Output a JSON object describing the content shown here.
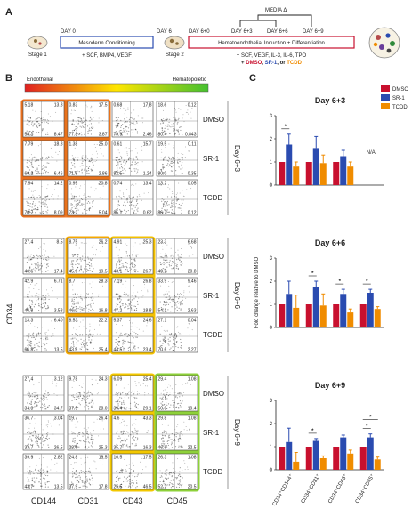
{
  "panels": {
    "a": "A",
    "b": "B",
    "c": "C"
  },
  "timeline": {
    "day0": "DAY 0",
    "day6": "DAY 6",
    "day6_0": "DAY 6+0",
    "day6_3": "DAY 6+3",
    "day6_6": "DAY 6+6",
    "day6_9": "DAY 6+9",
    "media": "MEDIA Δ",
    "stage1": "Stage 1",
    "stage2": "Stage 2",
    "mesoderm": "Mesoderm Conditioning",
    "mesoderm_factors": "+ SCF, BMP4, VEGF",
    "hemato": "Hematoendothelial Induction + Differentiation",
    "hemato_factors": "+ SCF, VEGF, IL-3, IL-6, TPO",
    "plus": "+",
    "dmso": "DMSO",
    "sep1": ",",
    "sr1": "SR-1",
    "sep2": ", or",
    "tcdd": "TCDD"
  },
  "gradient": {
    "left": "Endothelial",
    "right": "Hematopoietic"
  },
  "flow": {
    "ylabel": "CD34",
    "columns": [
      "CD144",
      "CD31",
      "CD43",
      "CD45"
    ],
    "treatments": [
      "DMSO",
      "SR-1",
      "TCDD"
    ],
    "days": [
      "Day 6+3",
      "Day 6+6",
      "Day 6+9"
    ],
    "quadrants": [
      [
        [
          "5.18",
          "13.8",
          "58.1",
          "8.47"
        ],
        [
          "0.83",
          "17.5",
          "77.8",
          "3.87"
        ],
        [
          "0.68",
          "17.8",
          "79.9",
          "2.46"
        ],
        [
          "18.6",
          "0.12",
          "80.4",
          "0.843"
        ]
      ],
      [
        [
          "7.79",
          "18.8",
          "60.2",
          "6.46"
        ],
        [
          "1.38",
          "25.0",
          "71.9",
          "2.86"
        ],
        [
          "0.61",
          "15.7",
          "82.5",
          "1.24"
        ],
        [
          "19.5",
          "0.11",
          "80.0",
          "0.35"
        ]
      ],
      [
        [
          "7.94",
          "14.2",
          "70.7",
          "8.09"
        ],
        [
          "0.95",
          "20.8",
          "73.2",
          "5.04"
        ],
        [
          "0.74",
          "13.4",
          "85.1",
          "0.62"
        ],
        [
          "13.2",
          "0.05",
          "86.7",
          "0.12"
        ]
      ],
      [
        [
          "27.4",
          "8.5",
          "46.6",
          "17.4"
        ],
        [
          "8.75",
          "26.2",
          "45.6",
          "19.5"
        ],
        [
          "4.91",
          "25.3",
          "43.1",
          "26.7"
        ],
        [
          "23.3",
          "6.68",
          "49.2",
          "20.8"
        ]
      ],
      [
        [
          "42.9",
          "6.71",
          "46.8",
          "3.58"
        ],
        [
          "8.7",
          "28.3",
          "46.2",
          "16.8"
        ],
        [
          "7.19",
          "26.8",
          "47.2",
          "18.8"
        ],
        [
          "33.9",
          "9.46",
          "54.1",
          "2.63"
        ]
      ],
      [
        [
          "13.3",
          "6.40",
          "66.8",
          "13.5"
        ],
        [
          "8.53",
          "22.2",
          "43.9",
          "25.4"
        ],
        [
          "5.37",
          "24.6",
          "44.5",
          "23.4"
        ],
        [
          "27.1",
          "0.04",
          "70.6",
          "2.27"
        ]
      ],
      [
        [
          "27.4",
          "3.12",
          "34.8",
          "34.7"
        ],
        [
          "9.78",
          "24.3",
          "37.9",
          "28.0"
        ],
        [
          "6.09",
          "25.4",
          "39.4",
          "29.1"
        ],
        [
          "29.4",
          "1.08",
          "50.0",
          "19.4"
        ]
      ],
      [
        [
          "36.7",
          "3.04",
          "33.7",
          "26.5"
        ],
        [
          "19.7",
          "26.4",
          "28.6",
          "25.3"
        ],
        [
          "4.6",
          "43.3",
          "35.7",
          "16.3"
        ],
        [
          "29.8",
          "1.08",
          "46.6",
          "22.5"
        ]
      ],
      [
        [
          "39.9",
          "2.82",
          "43.7",
          "13.5"
        ],
        [
          "24.8",
          "19.5",
          "37.9",
          "17.8"
        ],
        [
          "10.5",
          "17.5",
          "25.5",
          "46.5"
        ],
        [
          "26.3",
          "1.08",
          "52.2",
          "20.5"
        ]
      ]
    ]
  },
  "bar_legend": [
    "DMSO",
    "SR-1",
    "TCDD"
  ],
  "bar_colors": {
    "DMSO": "#c8102e",
    "SR-1": "#2a4bb0",
    "TCDD": "#f08c00"
  },
  "chart_data": [
    {
      "type": "bar",
      "title": "Day 6+3",
      "categories": [
        "CD34+CD144+",
        "CD34+CD31+",
        "CD34+CD43+",
        "CD34+CD45+"
      ],
      "series": [
        {
          "name": "DMSO",
          "values": [
            1.0,
            1.0,
            1.0,
            null
          ],
          "errors": [
            0,
            0,
            0,
            null
          ]
        },
        {
          "name": "SR-1",
          "values": [
            1.75,
            1.6,
            1.25,
            null
          ],
          "errors": [
            0.45,
            0.5,
            0.25,
            null
          ]
        },
        {
          "name": "TCDD",
          "values": [
            0.8,
            0.95,
            0.8,
            null
          ],
          "errors": [
            0.2,
            0.35,
            0.2,
            null
          ]
        }
      ],
      "ylim": [
        0,
        3
      ],
      "yticks": [
        "0",
        "1",
        "2",
        "3"
      ],
      "significance": [
        {
          "category": 0,
          "label": "*"
        }
      ],
      "annotation": "N/A"
    },
    {
      "type": "bar",
      "title": "Day 6+6",
      "categories": [
        "CD34+CD144+",
        "CD34+CD31+",
        "CD34+CD43+",
        "CD34+CD45+"
      ],
      "series": [
        {
          "name": "DMSO",
          "values": [
            1.0,
            1.0,
            1.0,
            1.0
          ],
          "errors": [
            0,
            0,
            0,
            0
          ]
        },
        {
          "name": "SR-1",
          "values": [
            1.45,
            1.75,
            1.45,
            1.5
          ],
          "errors": [
            0.55,
            0.25,
            0.2,
            0.15
          ]
        },
        {
          "name": "TCDD",
          "values": [
            0.85,
            0.95,
            0.65,
            0.8
          ],
          "errors": [
            0.55,
            0.5,
            0.15,
            0.1
          ]
        }
      ],
      "ylim": [
        0,
        3
      ],
      "yticks": [
        "0",
        "1",
        "2",
        "3"
      ],
      "ylabel": "Fold change relative to DMSO",
      "significance": [
        {
          "category": 1,
          "label": "*"
        },
        {
          "category": 2,
          "label": "*"
        },
        {
          "category": 3,
          "label": "*"
        }
      ]
    },
    {
      "type": "bar",
      "title": "Day 6+9",
      "categories": [
        "CD34+CD144+",
        "CD34+CD31+",
        "CD34+CD43+",
        "CD34+CD45+"
      ],
      "series": [
        {
          "name": "DMSO",
          "values": [
            1.0,
            1.0,
            1.0,
            1.0
          ],
          "errors": [
            0,
            0,
            0,
            0
          ]
        },
        {
          "name": "SR-1",
          "values": [
            1.2,
            1.25,
            1.4,
            1.4
          ],
          "errors": [
            0.6,
            0.1,
            0.1,
            0.15
          ]
        },
        {
          "name": "TCDD",
          "values": [
            0.35,
            0.5,
            0.7,
            0.45
          ],
          "errors": [
            0.4,
            0.1,
            0.15,
            0.1
          ]
        }
      ],
      "ylim": [
        0,
        3
      ],
      "yticks": [
        "0",
        "1",
        "2",
        "3"
      ],
      "significance": [
        {
          "category": 1,
          "label": "*"
        },
        {
          "category": 3,
          "label": "*"
        },
        {
          "category": 3,
          "label": "*"
        }
      ],
      "xlabels": [
        "CD34⁺CD144⁺",
        "CD34⁺CD31⁺",
        "CD34⁺CD43⁺",
        "CD34⁺CD45⁺"
      ]
    }
  ]
}
